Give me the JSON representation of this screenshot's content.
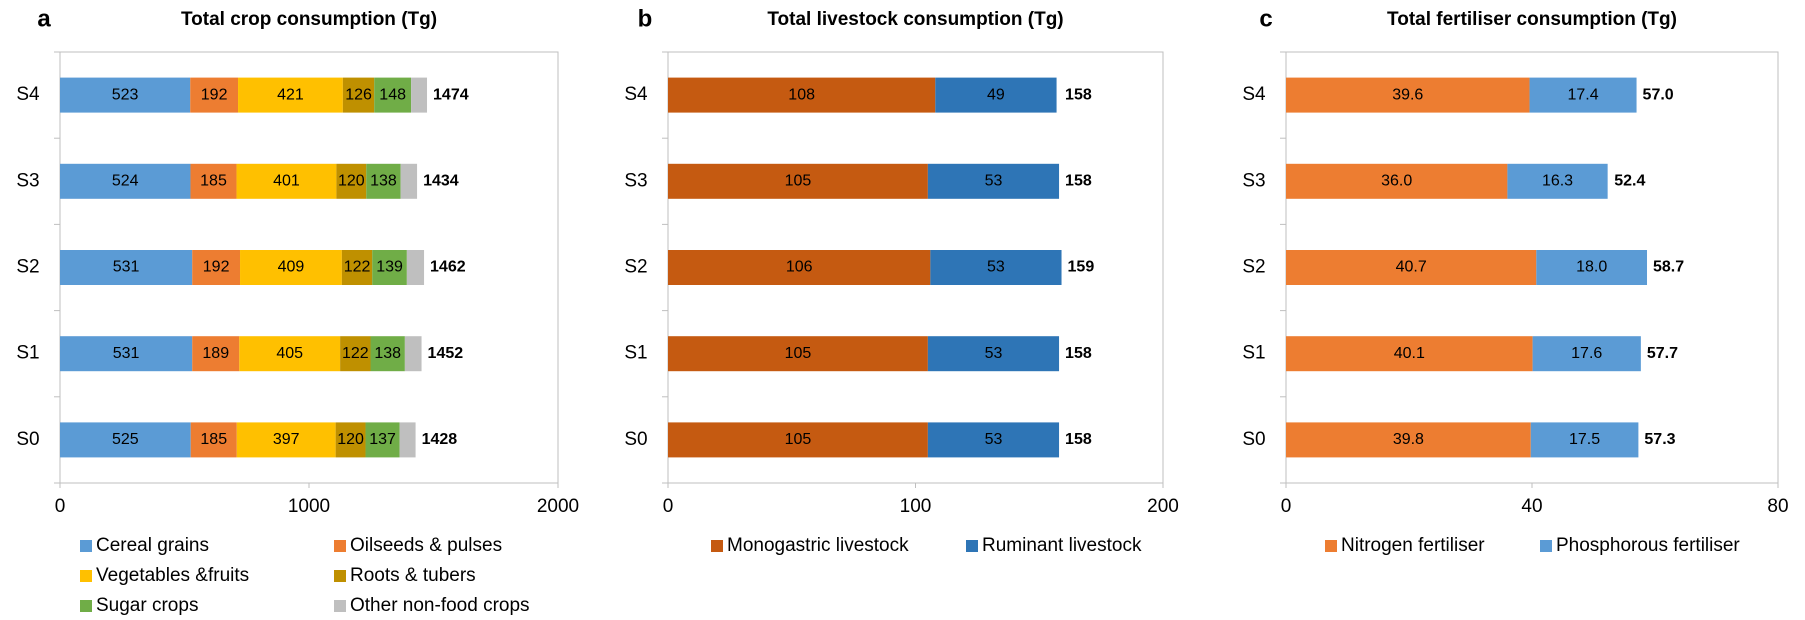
{
  "chart_data": [
    {
      "type": "stacked-bar-h",
      "panel_label": "a",
      "title": "Total crop consumption (Tg)",
      "categories": [
        "S4",
        "S3",
        "S2",
        "S1",
        "S0"
      ],
      "series": [
        {
          "name": "Cereal grains",
          "color": "#5b9bd5",
          "values": [
            523,
            524,
            531,
            531,
            525
          ]
        },
        {
          "name": "Oilseeds & pulses",
          "color": "#ed7d31",
          "values": [
            192,
            185,
            192,
            189,
            185
          ]
        },
        {
          "name": "Vegetables &fruits",
          "color": "#ffc000",
          "values": [
            421,
            401,
            409,
            405,
            397
          ]
        },
        {
          "name": "Roots & tubers",
          "color": "#bf9000",
          "values": [
            126,
            120,
            122,
            122,
            120
          ]
        },
        {
          "name": "Sugar crops",
          "color": "#70ad47",
          "values": [
            148,
            138,
            139,
            138,
            137
          ]
        },
        {
          "name": "Other non-food crops",
          "color": "#bfbfbf",
          "values": [
            64,
            66,
            69,
            67,
            64
          ],
          "data_labels": false
        }
      ],
      "totals": [
        1474,
        1434,
        1462,
        1452,
        1428
      ],
      "xlim": [
        0,
        2000
      ],
      "xticks": [
        0,
        1000,
        2000
      ]
    },
    {
      "type": "stacked-bar-h",
      "panel_label": "b",
      "title": "Total livestock consumption (Tg)",
      "categories": [
        "S4",
        "S3",
        "S2",
        "S1",
        "S0"
      ],
      "series": [
        {
          "name": "Monogastric livestock",
          "color": "#c55a11",
          "values": [
            108,
            105,
            106,
            105,
            105
          ]
        },
        {
          "name": "Ruminant livestock",
          "color": "#2e75b6",
          "values": [
            49,
            53,
            53,
            53,
            53
          ]
        }
      ],
      "totals": [
        158,
        158,
        159,
        158,
        158
      ],
      "xlim": [
        0,
        200
      ],
      "xticks": [
        0,
        100,
        200
      ]
    },
    {
      "type": "stacked-bar-h",
      "panel_label": "c",
      "title": "Total fertiliser consumption (Tg)",
      "categories": [
        "S4",
        "S3",
        "S2",
        "S1",
        "S0"
      ],
      "series": [
        {
          "name": "Nitrogen fertiliser",
          "color": "#ed7d31",
          "values": [
            39.6,
            36.0,
            40.7,
            40.1,
            39.8
          ],
          "value_labels": [
            "39.6",
            "36.0",
            "40.7",
            "40.1",
            "39.8"
          ]
        },
        {
          "name": "Phosphorous fertiliser",
          "color": "#5b9bd5",
          "values": [
            17.4,
            16.3,
            18.0,
            17.6,
            17.5
          ],
          "value_labels": [
            "17.4",
            "16.3",
            "18.0",
            "17.6",
            "17.5"
          ]
        }
      ],
      "totals": [
        57.0,
        52.4,
        58.7,
        57.7,
        57.3
      ],
      "total_labels": [
        "57.0",
        "52.4",
        "58.7",
        "57.7",
        "57.3"
      ],
      "xlim": [
        0,
        80
      ],
      "xticks": [
        0,
        40,
        80
      ]
    }
  ]
}
